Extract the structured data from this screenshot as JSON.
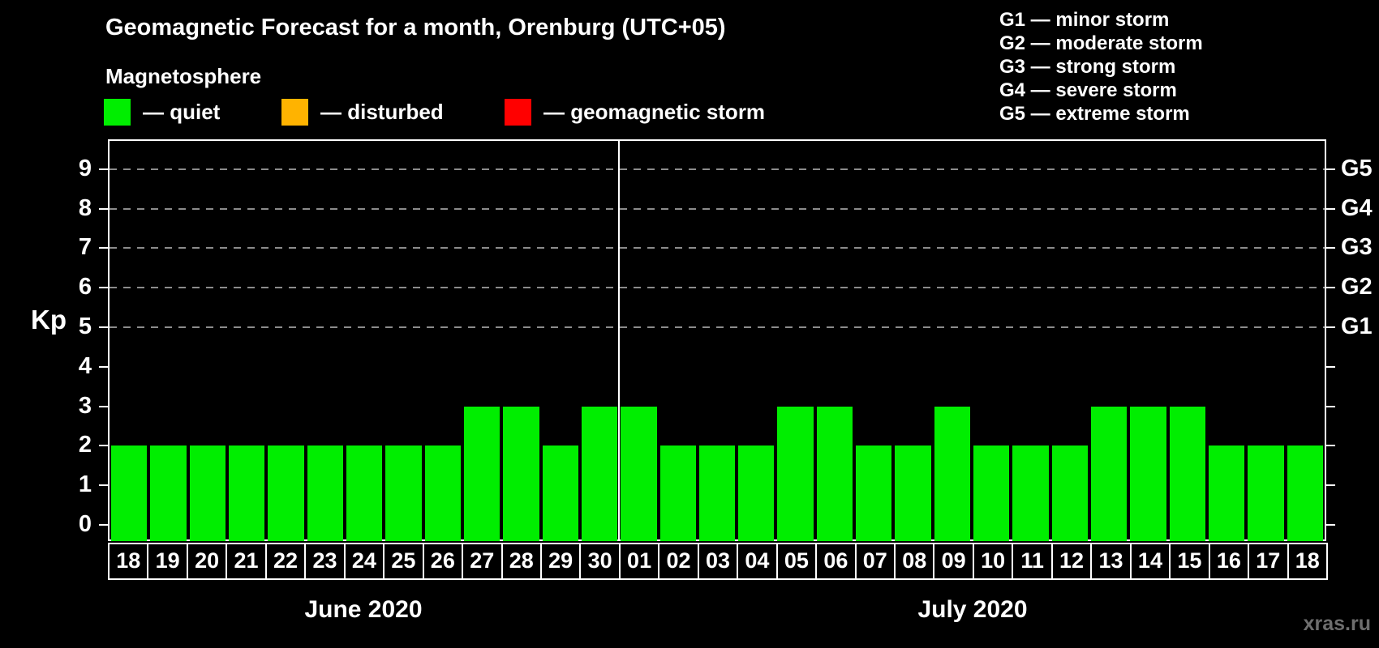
{
  "title": "Geomagnetic Forecast for a month, Orenburg (UTC+05)",
  "subtitle": "Magnetosphere",
  "legend": {
    "items": [
      {
        "name": "quiet",
        "color": "#00ee00",
        "label": "— quiet"
      },
      {
        "name": "disturbed",
        "color": "#ffb300",
        "label": "— disturbed"
      },
      {
        "name": "storm",
        "color": "#ff0000",
        "label": "— geomagnetic storm"
      }
    ]
  },
  "g_legend": [
    "G1 — minor storm",
    "G2 — moderate storm",
    "G3 — strong storm",
    "G4 — severe storm",
    "G5 — extreme storm"
  ],
  "watermark": "xras.ru",
  "chart_data": {
    "type": "bar",
    "title": "Geomagnetic Forecast for a month, Orenburg (UTC+05)",
    "ylabel": "Kp",
    "ylim": [
      0,
      9
    ],
    "y_ticks": [
      0,
      1,
      2,
      3,
      4,
      5,
      6,
      7,
      8,
      9
    ],
    "gridlines_at": [
      5,
      6,
      7,
      8,
      9
    ],
    "grid_style": "dashed horizontal gray lines at storm levels G1–G5",
    "right_axis_labels": [
      {
        "label": "G1",
        "kp": 5
      },
      {
        "label": "G2",
        "kp": 6
      },
      {
        "label": "G3",
        "kp": 7
      },
      {
        "label": "G4",
        "kp": 8
      },
      {
        "label": "G5",
        "kp": 9
      }
    ],
    "categories": [
      "18",
      "19",
      "20",
      "21",
      "22",
      "23",
      "24",
      "25",
      "26",
      "27",
      "28",
      "29",
      "30",
      "01",
      "02",
      "03",
      "04",
      "05",
      "06",
      "07",
      "08",
      "09",
      "10",
      "11",
      "12",
      "13",
      "14",
      "15",
      "16",
      "17",
      "18"
    ],
    "values": [
      2,
      2,
      2,
      2,
      2,
      2,
      2,
      2,
      2,
      3,
      3,
      2,
      3,
      3,
      2,
      2,
      2,
      3,
      3,
      2,
      2,
      3,
      2,
      2,
      2,
      3,
      3,
      3,
      2,
      2,
      2
    ],
    "months": [
      {
        "label": "June 2020",
        "start_index": 0,
        "days": 13
      },
      {
        "label": "July 2020",
        "start_index": 13,
        "days": 18
      }
    ],
    "color_rule": {
      "quiet_max_kp": 3,
      "disturbed_max_kp": 4,
      "storm_min_kp": 5
    },
    "colors": {
      "quiet": "#00ee00",
      "disturbed": "#ffb300",
      "storm": "#ff0000"
    }
  }
}
